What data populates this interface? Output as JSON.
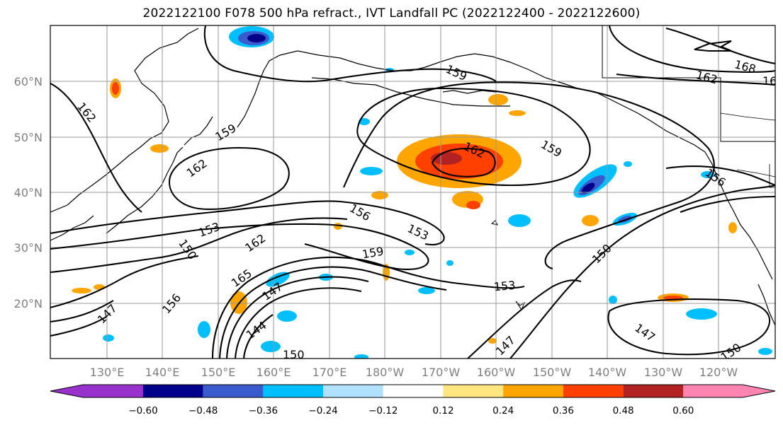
{
  "title": "2022122100 F078 500 hPa refract., IVT Landfall PC (2022122400 - 2022122600)",
  "map": {
    "lat_labels": [
      "60°N",
      "50°N",
      "40°N",
      "30°N",
      "20°N"
    ],
    "lon_labels": [
      "130°E",
      "140°E",
      "150°E",
      "160°E",
      "170°E",
      "180°W",
      "170°W",
      "160°W",
      "150°W",
      "140°W",
      "130°W",
      "120°W"
    ],
    "contour_levels": [
      "144",
      "147",
      "150",
      "153",
      "156",
      "159",
      "162",
      "165",
      "168"
    ]
  },
  "colorbar": {
    "colors": [
      "#9932cc",
      "#00008b",
      "#3a5bcd",
      "#00bfff",
      "#b0e2ff",
      "#ffffff",
      "#ffe680",
      "#ffa500",
      "#ff4000",
      "#b22222",
      "#ff85b0"
    ],
    "tick_labels": [
      "−0.60",
      "−0.48",
      "−0.36",
      "−0.24",
      "−0.12",
      "0.12",
      "0.24",
      "0.36",
      "0.48",
      "0.60"
    ]
  }
}
